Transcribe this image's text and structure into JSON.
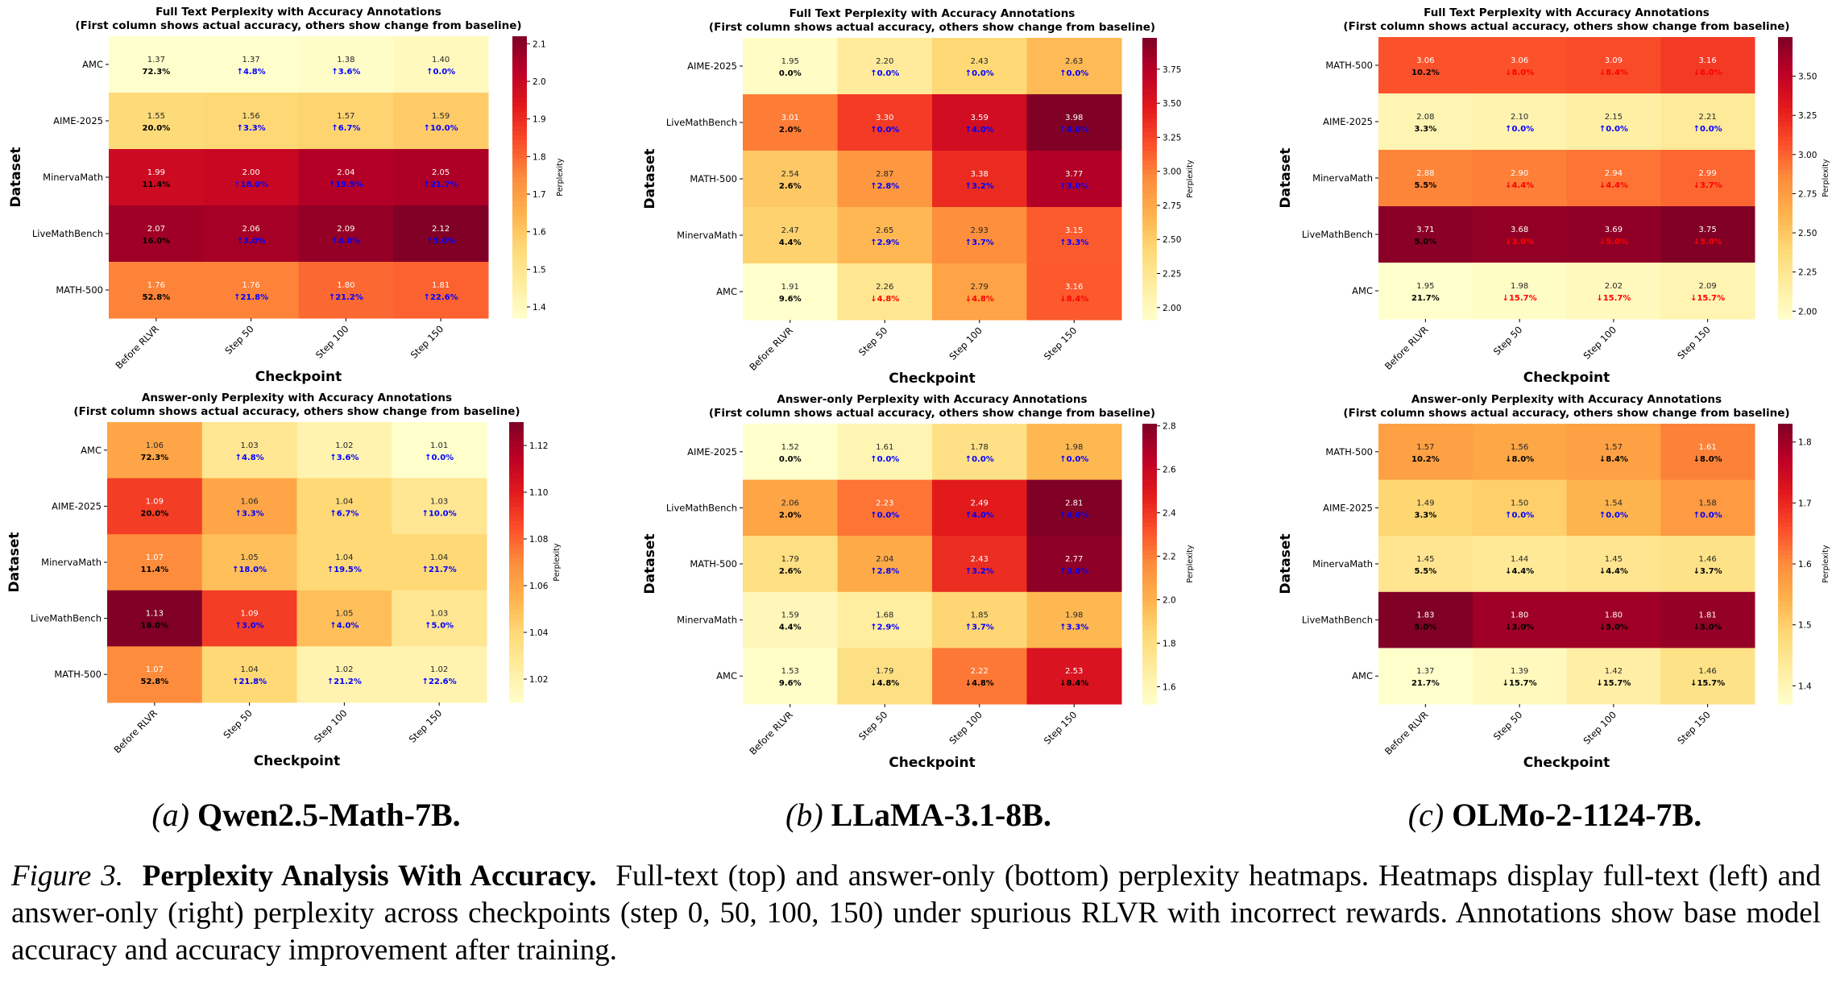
{
  "figure": {
    "subcaptions": [
      {
        "label": "(a)",
        "name": "Qwen2.5-Math-7B."
      },
      {
        "label": "(b)",
        "name": "LLaMA-3.1-8B."
      },
      {
        "label": "(c)",
        "name": "OLMo-2-1124-7B."
      }
    ],
    "caption": {
      "label": "Figure 3.",
      "title": "Perplexity Analysis With Accuracy.",
      "text": "Full-text (top) and answer-only (bottom) perplexity heatmaps.  Heatmaps display full-text (left) and answer-only (right) perplexity across checkpoints (step 0, 50, 100, 150) under spurious RLVR with incorrect rewards. Annotations show base model accuracy and accuracy improvement after training."
    }
  },
  "colors": {
    "up_annotation": "#0000ff",
    "down_annotation_red": "#ff0000",
    "base_annotation": "#000000",
    "colormap": "YlOrRd"
  },
  "chart_data": [
    {
      "type": "heatmap",
      "model": "Qwen2.5-Math-7B",
      "title": "Full Text Perplexity with Accuracy Annotations\n(First column shows actual accuracy, others show change from baseline)",
      "xlabel": "Checkpoint",
      "ylabel": "Dataset",
      "colorbar_label": "Perplexity",
      "colorbar_ticks": [
        "1.4",
        "1.5",
        "1.6",
        "1.7",
        "1.8",
        "1.9",
        "2.0",
        "2.1"
      ],
      "categories_x": [
        "Before RLVR",
        "Step 50",
        "Step 100",
        "Step 150"
      ],
      "categories_y": [
        "AMC",
        "AIME-2025",
        "MinervaMath",
        "LiveMathBench",
        "MATH-500"
      ],
      "values": [
        [
          1.37,
          1.37,
          1.38,
          1.4
        ],
        [
          1.55,
          1.56,
          1.57,
          1.59
        ],
        [
          1.99,
          2.0,
          2.04,
          2.05
        ],
        [
          2.07,
          2.06,
          2.09,
          2.12
        ],
        [
          1.76,
          1.76,
          1.8,
          1.81
        ]
      ],
      "annotations": [
        [
          "72.3%",
          "↑4.8%",
          "↑3.6%",
          "↑0.0%"
        ],
        [
          "20.0%",
          "↑3.3%",
          "↑6.7%",
          "↑10.0%"
        ],
        [
          "11.4%",
          "↑18.0%",
          "↑19.5%",
          "↑21.7%"
        ],
        [
          "16.0%",
          "↑3.0%",
          "↑4.0%",
          "↑5.0%"
        ],
        [
          "52.8%",
          "↑21.8%",
          "↑21.2%",
          "↑22.6%"
        ]
      ],
      "down_color": "red"
    },
    {
      "type": "heatmap",
      "model": "LLaMA-3.1-8B",
      "title": "Full Text Perplexity with Accuracy Annotations\n(First column shows actual accuracy, others show change from baseline)",
      "xlabel": "Checkpoint",
      "ylabel": "Dataset",
      "colorbar_label": "Perplexity",
      "colorbar_ticks": [
        "2.00",
        "2.25",
        "2.50",
        "2.75",
        "3.00",
        "3.25",
        "3.50",
        "3.75"
      ],
      "categories_x": [
        "Before RLVR",
        "Step 50",
        "Step 100",
        "Step 150"
      ],
      "categories_y": [
        "AIME-2025",
        "LiveMathBench",
        "MATH-500",
        "MinervaMath",
        "AMC"
      ],
      "values": [
        [
          1.95,
          2.2,
          2.43,
          2.63
        ],
        [
          3.01,
          3.3,
          3.59,
          3.98
        ],
        [
          2.54,
          2.87,
          3.38,
          3.77
        ],
        [
          2.47,
          2.65,
          2.93,
          3.15
        ],
        [
          1.91,
          2.26,
          2.79,
          3.16
        ]
      ],
      "annotations": [
        [
          "0.0%",
          "↑0.0%",
          "↑0.0%",
          "↑0.0%"
        ],
        [
          "2.0%",
          "↑0.0%",
          "↑4.0%",
          "↑4.0%"
        ],
        [
          "2.6%",
          "↑2.8%",
          "↑3.2%",
          "↑3.0%"
        ],
        [
          "4.4%",
          "↑2.9%",
          "↑3.7%",
          "↑3.3%"
        ],
        [
          "9.6%",
          "↓4.8%",
          "↓4.8%",
          "↓8.4%"
        ]
      ],
      "down_color": "red"
    },
    {
      "type": "heatmap",
      "model": "OLMo-2-1124-7B",
      "title": "Full Text Perplexity with Accuracy Annotations\n(First column shows actual accuracy, others show change from baseline)",
      "xlabel": "Checkpoint",
      "ylabel": "Dataset",
      "colorbar_label": "Perplexity",
      "colorbar_ticks": [
        "2.00",
        "2.25",
        "2.50",
        "2.75",
        "3.00",
        "3.25",
        "3.50"
      ],
      "categories_x": [
        "Before RLVR",
        "Step 50",
        "Step 100",
        "Step 150"
      ],
      "categories_y": [
        "MATH-500",
        "AIME-2025",
        "MinervaMath",
        "LiveMathBench",
        "AMC"
      ],
      "values": [
        [
          3.06,
          3.06,
          3.09,
          3.16
        ],
        [
          2.08,
          2.1,
          2.15,
          2.21
        ],
        [
          2.88,
          2.9,
          2.94,
          2.99
        ],
        [
          3.71,
          3.68,
          3.69,
          3.75
        ],
        [
          1.95,
          1.98,
          2.02,
          2.09
        ]
      ],
      "annotations": [
        [
          "10.2%",
          "↓8.0%",
          "↓8.4%",
          "↓8.0%"
        ],
        [
          "3.3%",
          "↑0.0%",
          "↑0.0%",
          "↑0.0%"
        ],
        [
          "5.5%",
          "↓4.4%",
          "↓4.4%",
          "↓3.7%"
        ],
        [
          "5.0%",
          "↓3.0%",
          "↓5.0%",
          "↓5.0%"
        ],
        [
          "21.7%",
          "↓15.7%",
          "↓15.7%",
          "↓15.7%"
        ]
      ],
      "down_color": "red"
    },
    {
      "type": "heatmap",
      "model": "Qwen2.5-Math-7B",
      "title": "Answer-only Perplexity with Accuracy Annotations\n(First column shows actual accuracy, others show change from baseline)",
      "xlabel": "Checkpoint",
      "ylabel": "Dataset",
      "colorbar_label": "Perplexity",
      "colorbar_ticks": [
        "1.02",
        "1.04",
        "1.06",
        "1.08",
        "1.10",
        "1.12"
      ],
      "categories_x": [
        "Before RLVR",
        "Step 50",
        "Step 100",
        "Step 150"
      ],
      "categories_y": [
        "AMC",
        "AIME-2025",
        "MinervaMath",
        "LiveMathBench",
        "MATH-500"
      ],
      "values": [
        [
          1.06,
          1.03,
          1.02,
          1.01
        ],
        [
          1.09,
          1.06,
          1.04,
          1.03
        ],
        [
          1.07,
          1.05,
          1.04,
          1.04
        ],
        [
          1.13,
          1.09,
          1.05,
          1.03
        ],
        [
          1.07,
          1.04,
          1.02,
          1.02
        ]
      ],
      "annotations": [
        [
          "72.3%",
          "↑4.8%",
          "↑3.6%",
          "↑0.0%"
        ],
        [
          "20.0%",
          "↑3.3%",
          "↑6.7%",
          "↑10.0%"
        ],
        [
          "11.4%",
          "↑18.0%",
          "↑19.5%",
          "↑21.7%"
        ],
        [
          "16.0%",
          "↑3.0%",
          "↑4.0%",
          "↑5.0%"
        ],
        [
          "52.8%",
          "↑21.8%",
          "↑21.2%",
          "↑22.6%"
        ]
      ],
      "down_color": "black"
    },
    {
      "type": "heatmap",
      "model": "LLaMA-3.1-8B",
      "title": "Answer-only Perplexity with Accuracy Annotations\n(First column shows actual accuracy, others show change from baseline)",
      "xlabel": "Checkpoint",
      "ylabel": "Dataset",
      "colorbar_label": "Perplexity",
      "colorbar_ticks": [
        "1.6",
        "1.8",
        "2.0",
        "2.2",
        "2.4",
        "2.6",
        "2.8"
      ],
      "categories_x": [
        "Before RLVR",
        "Step 50",
        "Step 100",
        "Step 150"
      ],
      "categories_y": [
        "AIME-2025",
        "LiveMathBench",
        "MATH-500",
        "MinervaMath",
        "AMC"
      ],
      "values": [
        [
          1.52,
          1.61,
          1.78,
          1.98
        ],
        [
          2.06,
          2.23,
          2.49,
          2.81
        ],
        [
          1.79,
          2.04,
          2.43,
          2.77
        ],
        [
          1.59,
          1.68,
          1.85,
          1.98
        ],
        [
          1.53,
          1.79,
          2.22,
          2.53
        ]
      ],
      "annotations": [
        [
          "0.0%",
          "↑0.0%",
          "↑0.0%",
          "↑0.0%"
        ],
        [
          "2.0%",
          "↑0.0%",
          "↑4.0%",
          "↑4.0%"
        ],
        [
          "2.6%",
          "↑2.8%",
          "↑3.2%",
          "↑3.0%"
        ],
        [
          "4.4%",
          "↑2.9%",
          "↑3.7%",
          "↑3.3%"
        ],
        [
          "9.6%",
          "↓4.8%",
          "↓4.8%",
          "↓8.4%"
        ]
      ],
      "down_color": "black"
    },
    {
      "type": "heatmap",
      "model": "OLMo-2-1124-7B",
      "title": "Answer-only Perplexity with Accuracy Annotations\n(First column shows actual accuracy, others show change from baseline)",
      "xlabel": "Checkpoint",
      "ylabel": "Dataset",
      "colorbar_label": "Perplexity",
      "colorbar_ticks": [
        "1.4",
        "1.5",
        "1.6",
        "1.7",
        "1.8"
      ],
      "categories_x": [
        "Before RLVR",
        "Step 50",
        "Step 100",
        "Step 150"
      ],
      "categories_y": [
        "MATH-500",
        "AIME-2025",
        "MinervaMath",
        "LiveMathBench",
        "AMC"
      ],
      "values": [
        [
          1.57,
          1.56,
          1.57,
          1.61
        ],
        [
          1.49,
          1.5,
          1.54,
          1.58
        ],
        [
          1.45,
          1.44,
          1.45,
          1.46
        ],
        [
          1.83,
          1.8,
          1.8,
          1.81
        ],
        [
          1.37,
          1.39,
          1.42,
          1.46
        ]
      ],
      "annotations": [
        [
          "10.2%",
          "↓8.0%",
          "↓8.4%",
          "↓8.0%"
        ],
        [
          "3.3%",
          "↑0.0%",
          "↑0.0%",
          "↑0.0%"
        ],
        [
          "5.5%",
          "↓4.4%",
          "↓4.4%",
          "↓3.7%"
        ],
        [
          "5.0%",
          "↓3.0%",
          "↓5.0%",
          "↓5.0%"
        ],
        [
          "21.7%",
          "↓15.7%",
          "↓15.7%",
          "↓15.7%"
        ]
      ],
      "down_color": "black"
    }
  ]
}
